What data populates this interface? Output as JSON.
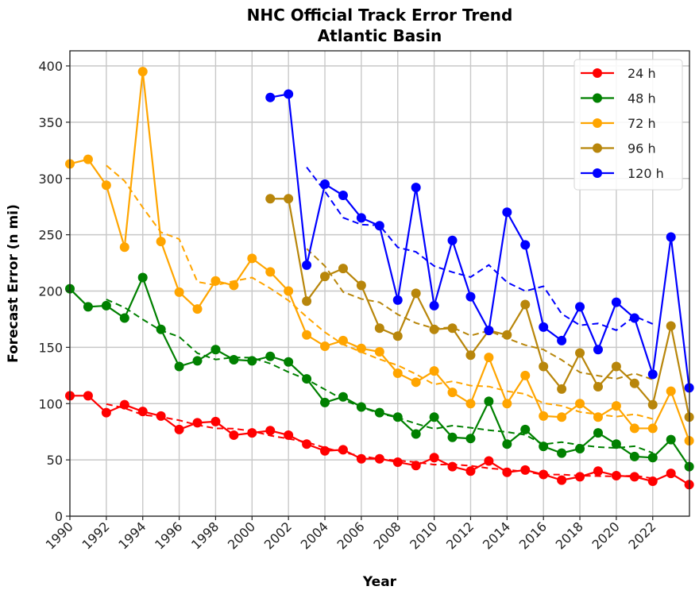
{
  "chart_data": {
    "type": "line",
    "title": "NHC Official Track Error Trend",
    "subtitle": "Atlantic Basin",
    "xlabel": "Year",
    "ylabel": "Forecast Error (n mi)",
    "xlim": [
      1990,
      2024
    ],
    "ylim": [
      0,
      415
    ],
    "x_ticks": [
      1990,
      1992,
      1994,
      1996,
      1998,
      2000,
      2002,
      2004,
      2006,
      2008,
      2010,
      2012,
      2014,
      2016,
      2018,
      2020,
      2022
    ],
    "y_ticks": [
      0,
      50,
      100,
      150,
      200,
      250,
      300,
      350,
      400
    ],
    "grid": true,
    "legend_position": "upper right",
    "trend_lines": "dashed, 5-year moving average per series",
    "series": [
      {
        "name": "24 h",
        "color": "#ff0000",
        "start_year": 1990,
        "values": [
          107,
          107,
          92,
          99,
          93,
          89,
          77,
          83,
          84,
          72,
          74,
          76,
          72,
          64,
          58,
          59,
          51,
          51,
          48,
          45,
          52,
          44,
          40,
          49,
          39,
          41,
          37,
          32,
          35,
          40,
          36,
          35,
          31,
          38,
          28
        ]
      },
      {
        "name": "48 h",
        "color": "#008000",
        "start_year": 1990,
        "values": [
          202,
          186,
          187,
          176,
          212,
          166,
          133,
          138,
          148,
          139,
          138,
          142,
          137,
          122,
          101,
          106,
          97,
          92,
          88,
          73,
          88,
          70,
          69,
          102,
          64,
          77,
          62,
          56,
          60,
          74,
          64,
          53,
          52,
          68,
          44
        ]
      },
      {
        "name": "72 h",
        "color": "#ffa500",
        "start_year": 1990,
        "values": [
          313,
          317,
          294,
          239,
          395,
          244,
          199,
          184,
          209,
          205,
          229,
          217,
          200,
          161,
          151,
          156,
          149,
          146,
          127,
          119,
          129,
          110,
          100,
          141,
          100,
          125,
          89,
          88,
          100,
          88,
          98,
          78,
          78,
          111,
          67
        ]
      },
      {
        "name": "96 h",
        "color": "#b8860b",
        "start_year": 2001,
        "values": [
          282,
          282,
          191,
          213,
          220,
          205,
          167,
          160,
          198,
          166,
          167,
          143,
          165,
          161,
          188,
          133,
          113,
          145,
          115,
          133,
          118,
          99,
          169,
          88
        ]
      },
      {
        "name": "120 h",
        "color": "#0000ff",
        "start_year": 2001,
        "values": [
          372,
          375,
          223,
          295,
          285,
          265,
          258,
          192,
          292,
          187,
          245,
          195,
          165,
          270,
          241,
          168,
          156,
          186,
          148,
          190,
          176,
          126,
          248,
          114
        ]
      }
    ]
  }
}
